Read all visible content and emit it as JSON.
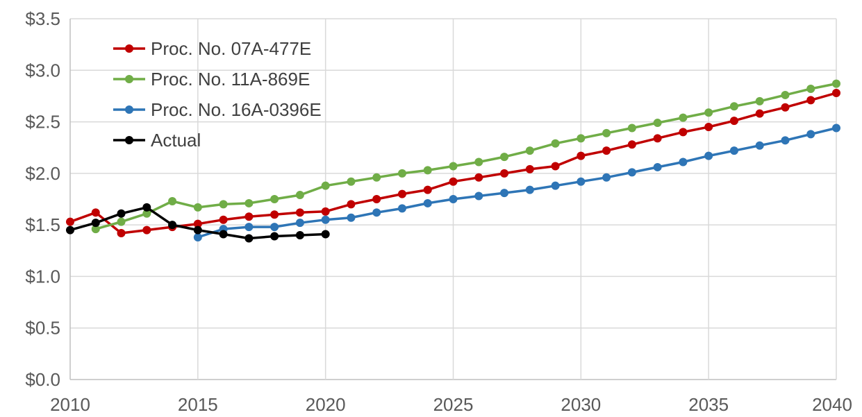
{
  "chart_data": {
    "type": "line",
    "title": "",
    "xlabel": "",
    "ylabel": "",
    "xlim": [
      2010,
      2040
    ],
    "ylim": [
      0,
      3.5
    ],
    "x_ticks": [
      2010,
      2015,
      2020,
      2025,
      2030,
      2035,
      2040
    ],
    "x_tick_labels": [
      "2010",
      "2015",
      "2020",
      "2025",
      "2030",
      "2035",
      "2040"
    ],
    "y_ticks": [
      0,
      0.5,
      1.0,
      1.5,
      2.0,
      2.5,
      3.0,
      3.5
    ],
    "y_tick_labels": [
      "$0.0",
      "$0.5",
      "$1.0",
      "$1.5",
      "$2.0",
      "$2.5",
      "$3.0",
      "$3.5"
    ],
    "grid": true,
    "legend_position": "top-left",
    "series": [
      {
        "name": "Proc. No. 07A-477E",
        "color": "#c00000",
        "x": [
          2010,
          2011,
          2012,
          2013,
          2014,
          2015,
          2016,
          2017,
          2018,
          2019,
          2020,
          2021,
          2022,
          2023,
          2024,
          2025,
          2026,
          2027,
          2028,
          2029,
          2030,
          2031,
          2032,
          2033,
          2034,
          2035,
          2036,
          2037,
          2038,
          2039,
          2040
        ],
        "values": [
          1.53,
          1.62,
          1.42,
          1.45,
          1.48,
          1.51,
          1.55,
          1.58,
          1.6,
          1.62,
          1.63,
          1.7,
          1.75,
          1.8,
          1.84,
          1.92,
          1.96,
          2.0,
          2.04,
          2.07,
          2.17,
          2.22,
          2.28,
          2.34,
          2.4,
          2.45,
          2.51,
          2.58,
          2.64,
          2.71,
          2.78
        ]
      },
      {
        "name": "Proc. No. 11A-869E",
        "color": "#70ad47",
        "x": [
          2011,
          2012,
          2013,
          2014,
          2015,
          2016,
          2017,
          2018,
          2019,
          2020,
          2021,
          2022,
          2023,
          2024,
          2025,
          2026,
          2027,
          2028,
          2029,
          2030,
          2031,
          2032,
          2033,
          2034,
          2035,
          2036,
          2037,
          2038,
          2039,
          2040
        ],
        "values": [
          1.46,
          1.53,
          1.61,
          1.73,
          1.67,
          1.7,
          1.71,
          1.75,
          1.79,
          1.88,
          1.92,
          1.96,
          2.0,
          2.03,
          2.07,
          2.11,
          2.16,
          2.22,
          2.29,
          2.34,
          2.39,
          2.44,
          2.49,
          2.54,
          2.59,
          2.65,
          2.7,
          2.76,
          2.82,
          2.87
        ]
      },
      {
        "name": "Proc. No. 16A-0396E",
        "color": "#2e75b6",
        "x": [
          2015,
          2016,
          2017,
          2018,
          2019,
          2020,
          2021,
          2022,
          2023,
          2024,
          2025,
          2026,
          2027,
          2028,
          2029,
          2030,
          2031,
          2032,
          2033,
          2034,
          2035,
          2036,
          2037,
          2038,
          2039,
          2040
        ],
        "values": [
          1.38,
          1.46,
          1.48,
          1.48,
          1.52,
          1.55,
          1.57,
          1.62,
          1.66,
          1.71,
          1.75,
          1.78,
          1.81,
          1.84,
          1.88,
          1.92,
          1.96,
          2.01,
          2.06,
          2.11,
          2.17,
          2.22,
          2.27,
          2.32,
          2.38,
          2.44
        ]
      },
      {
        "name": "Actual",
        "color": "#000000",
        "x": [
          2010,
          2011,
          2012,
          2013,
          2014,
          2015,
          2016,
          2017,
          2018,
          2019,
          2020
        ],
        "values": [
          1.45,
          1.52,
          1.61,
          1.67,
          1.5,
          1.45,
          1.41,
          1.37,
          1.39,
          1.4,
          1.41
        ]
      }
    ]
  }
}
